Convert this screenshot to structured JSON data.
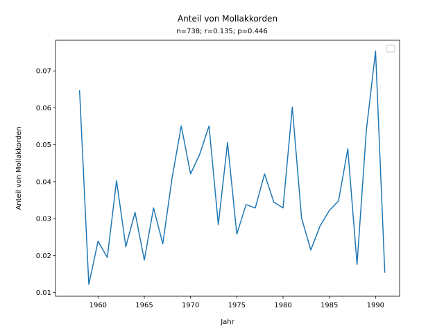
{
  "chart_data": {
    "type": "line",
    "title": "Anteil von Mollakkorden",
    "subtitle": "n=738; r=0.135; p=0.446",
    "xlabel": "Jahr",
    "ylabel": "Anteil von Mollakkorden",
    "xlim": [
      1955.4,
      1992.6
    ],
    "ylim": [
      0.009,
      0.0783
    ],
    "xticks": [
      1960,
      1965,
      1970,
      1975,
      1980,
      1985,
      1990
    ],
    "yticks": [
      0.01,
      0.02,
      0.03,
      0.04,
      0.05,
      0.06,
      0.07
    ],
    "xtick_labels": [
      "1960",
      "1965",
      "1970",
      "1975",
      "1980",
      "1985",
      "1990"
    ],
    "ytick_labels": [
      "0.01",
      "0.02",
      "0.03",
      "0.04",
      "0.05",
      "0.06",
      "0.07"
    ],
    "legend": {
      "placement": "top-right",
      "entries": []
    },
    "grid": false,
    "series": [
      {
        "color": "#1f77b4",
        "x": [
          1958,
          1959,
          1960,
          1961,
          1962,
          1963,
          1964,
          1965,
          1966,
          1967,
          1968,
          1969,
          1970,
          1971,
          1972,
          1973,
          1974,
          1975,
          1976,
          1977,
          1978,
          1979,
          1980,
          1981,
          1982,
          1983,
          1984,
          1985,
          1986,
          1987,
          1988,
          1989,
          1990,
          1991
        ],
        "y": [
          0.0648,
          0.0122,
          0.0239,
          0.0195,
          0.0403,
          0.0224,
          0.0317,
          0.0188,
          0.0329,
          0.0232,
          0.041,
          0.0551,
          0.0421,
          0.0475,
          0.0551,
          0.0284,
          0.0506,
          0.0258,
          0.0338,
          0.0329,
          0.0421,
          0.0345,
          0.0329,
          0.0602,
          0.0302,
          0.0215,
          0.028,
          0.0322,
          0.0348,
          0.0489,
          0.0176,
          0.0538,
          0.0754,
          0.0154
        ]
      }
    ]
  }
}
